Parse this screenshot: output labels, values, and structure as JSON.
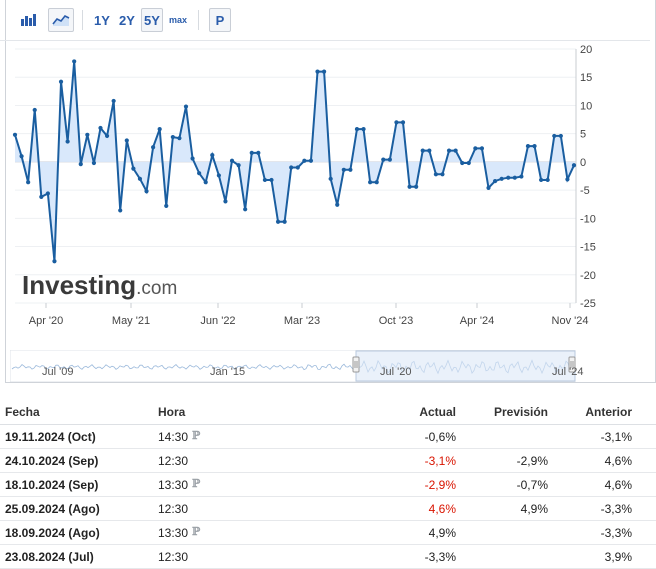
{
  "toolbar": {
    "icons": [
      "bar-chart-icon",
      "area-chart-icon"
    ],
    "ranges": [
      "1Y",
      "2Y",
      "5Y",
      "max"
    ],
    "selected_range": "5Y",
    "p_button": "P"
  },
  "watermark": {
    "brand": "Investing",
    "suffix": ".com"
  },
  "colors": {
    "line": "#1a5ea0",
    "fill": "#d9e8fb",
    "accent_text": "#2a5cab",
    "red": "#d91400"
  },
  "chart_data": {
    "type": "area",
    "ylim": [
      -25,
      20
    ],
    "y_ticks": [
      "20",
      "15",
      "10",
      "5",
      "0",
      "-5",
      "-10",
      "-15",
      "-20",
      "-25"
    ],
    "x_ticks": [
      "Apr '20",
      "May '21",
      "Jun '22",
      "Mar '23",
      "Oct '23",
      "Apr '24",
      "Nov '24"
    ],
    "series": [
      {
        "values": [
          4.8,
          1.0,
          -3.6,
          9.2,
          -6.2,
          -5.6,
          -17.6,
          14.2,
          3.6,
          17.8,
          -0.4,
          4.8,
          -0.2,
          6.0,
          4.6,
          10.8,
          -8.6,
          3.8,
          -1.2,
          -3.0,
          -5.2,
          2.6,
          5.8,
          -7.8,
          4.4,
          4.2,
          9.8,
          0.6,
          -2.0,
          -3.6,
          1.2,
          -2.4,
          -7.0,
          0.2,
          -0.6,
          -8.4,
          1.6,
          1.6,
          -3.2,
          -3.2,
          -10.6,
          -10.6,
          -1.0,
          -1.0,
          0.2,
          0.2,
          16.0,
          16.0,
          -3.0,
          -7.6,
          -1.4,
          -1.4,
          5.8,
          5.8,
          -3.6,
          -3.6,
          0.4,
          0.4,
          7.0,
          7.0,
          -4.4,
          -4.4,
          2.0,
          2.0,
          -2.2,
          -2.2,
          2.0,
          2.0,
          -0.2,
          -0.2,
          2.4,
          2.4,
          -4.6,
          -3.4,
          -3.0,
          -2.8,
          -2.8,
          -2.6,
          2.8,
          2.8,
          -3.2,
          -3.2,
          4.6,
          4.6,
          -3.1,
          -0.6
        ]
      }
    ]
  },
  "navigator": {
    "labels": [
      "Jul '09",
      "Jan '15",
      "Jul '20",
      "Jul '24"
    ]
  },
  "table": {
    "headers": {
      "date": "Fecha",
      "time": "Hora",
      "actual": "Actual",
      "forecast": "Previsión",
      "previous": "Anterior"
    },
    "rows": [
      {
        "date": "19.11.2024 (Oct)",
        "time": "14:30",
        "p": true,
        "actual": "-0,6%",
        "actual_color": "",
        "forecast": "",
        "previous": "-3,1%"
      },
      {
        "date": "24.10.2024 (Sep)",
        "time": "12:30",
        "p": false,
        "actual": "-3,1%",
        "actual_color": "red",
        "forecast": "-2,9%",
        "previous": "4,6%"
      },
      {
        "date": "18.10.2024 (Sep)",
        "time": "13:30",
        "p": true,
        "actual": "-2,9%",
        "actual_color": "red",
        "forecast": "-0,7%",
        "previous": "4,6%"
      },
      {
        "date": "25.09.2024 (Ago)",
        "time": "12:30",
        "p": false,
        "actual": "4,6%",
        "actual_color": "red",
        "forecast": "4,9%",
        "previous": "-3,3%"
      },
      {
        "date": "18.09.2024 (Ago)",
        "time": "13:30",
        "p": true,
        "actual": "4,9%",
        "actual_color": "",
        "forecast": "",
        "previous": "-3,3%"
      },
      {
        "date": "23.08.2024 (Jul)",
        "time": "12:30",
        "p": false,
        "actual": "-3,3%",
        "actual_color": "",
        "forecast": "",
        "previous": "3,9%"
      }
    ]
  }
}
